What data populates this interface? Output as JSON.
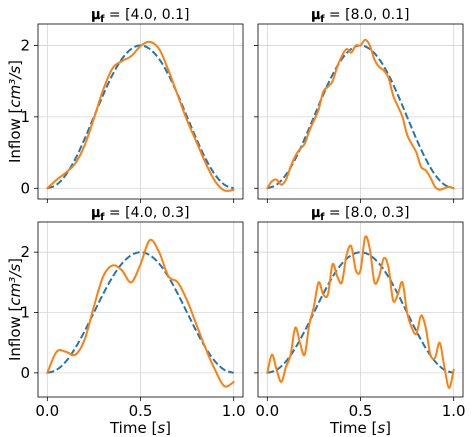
{
  "chart_data": [
    {
      "type": "line",
      "title": "𝛍_f = [4.0, 0.1]",
      "xlabel": "",
      "ylabel": "Inflow [cm³/s]",
      "xlim": [
        -0.05,
        1.05
      ],
      "ylim": [
        -0.15,
        2.3
      ],
      "xticks": [
        0.0,
        0.5,
        1.0
      ],
      "xticklabels": [
        "",
        "",
        ""
      ],
      "yticks": [
        0,
        1,
        2
      ],
      "yticklabels": [
        "0",
        "1",
        "2"
      ],
      "grid": true,
      "series": [
        {
          "style": "dashed",
          "color": "#1f77b4",
          "x": [
            0.0,
            0.05,
            0.1,
            0.15,
            0.2,
            0.25,
            0.3,
            0.35,
            0.4,
            0.45,
            0.5,
            0.55,
            0.6,
            0.65,
            0.7,
            0.75,
            0.8,
            0.85,
            0.9,
            0.95,
            1.0
          ],
          "y": [
            0.0,
            0.05,
            0.19,
            0.41,
            0.69,
            1.0,
            1.31,
            1.59,
            1.81,
            1.95,
            2.0,
            1.95,
            1.81,
            1.59,
            1.31,
            1.0,
            0.69,
            0.41,
            0.19,
            0.05,
            0.0
          ]
        },
        {
          "style": "solid",
          "color": "#ff7f0e",
          "x": [
            0.0,
            0.05,
            0.1,
            0.15,
            0.2,
            0.25,
            0.3,
            0.35,
            0.4,
            0.45,
            0.5,
            0.55,
            0.6,
            0.65,
            0.7,
            0.75,
            0.8,
            0.85,
            0.9,
            0.95,
            1.0
          ],
          "y": [
            0.0,
            0.12,
            0.22,
            0.35,
            0.6,
            0.98,
            1.38,
            1.68,
            1.78,
            1.85,
            1.99,
            2.05,
            1.95,
            1.65,
            1.3,
            0.95,
            0.65,
            0.35,
            0.1,
            -0.03,
            -0.02
          ]
        }
      ]
    },
    {
      "type": "line",
      "title": "𝛍_f = [8.0, 0.1]",
      "xlabel": "",
      "ylabel": "",
      "xlim": [
        -0.05,
        1.05
      ],
      "ylim": [
        -0.15,
        2.3
      ],
      "xticks": [
        0.0,
        0.5,
        1.0
      ],
      "xticklabels": [
        "",
        "",
        ""
      ],
      "yticks": [
        0,
        1,
        2
      ],
      "yticklabels": [
        "",
        "",
        ""
      ],
      "grid": true,
      "series": [
        {
          "style": "dashed",
          "color": "#1f77b4",
          "x": [
            0.0,
            0.05,
            0.1,
            0.15,
            0.2,
            0.25,
            0.3,
            0.35,
            0.4,
            0.45,
            0.5,
            0.55,
            0.6,
            0.65,
            0.7,
            0.75,
            0.8,
            0.85,
            0.9,
            0.95,
            1.0
          ],
          "y": [
            0.0,
            0.05,
            0.19,
            0.41,
            0.69,
            1.0,
            1.31,
            1.59,
            1.81,
            1.95,
            2.0,
            1.95,
            1.81,
            1.59,
            1.31,
            1.0,
            0.69,
            0.41,
            0.19,
            0.05,
            0.0
          ]
        },
        {
          "style": "solid",
          "color": "#ff7f0e",
          "x": [
            0.0,
            0.025,
            0.05,
            0.075,
            0.1,
            0.125,
            0.15,
            0.175,
            0.2,
            0.225,
            0.25,
            0.275,
            0.3,
            0.325,
            0.35,
            0.375,
            0.4,
            0.425,
            0.45,
            0.475,
            0.5,
            0.525,
            0.55,
            0.575,
            0.6,
            0.625,
            0.65,
            0.675,
            0.7,
            0.725,
            0.75,
            0.775,
            0.8,
            0.825,
            0.85,
            0.875,
            0.9,
            0.925,
            0.95,
            0.975,
            1.0
          ],
          "y": [
            0.0,
            0.1,
            0.12,
            0.05,
            0.12,
            0.3,
            0.45,
            0.55,
            0.62,
            0.8,
            0.95,
            1.1,
            1.35,
            1.42,
            1.5,
            1.7,
            1.85,
            1.95,
            1.9,
            2.0,
            2.0,
            2.08,
            2.0,
            1.8,
            1.7,
            1.65,
            1.55,
            1.3,
            1.15,
            1.0,
            0.75,
            0.62,
            0.5,
            0.3,
            0.25,
            0.15,
            0.02,
            -0.02,
            0.0,
            0.02,
            0.0
          ]
        }
      ]
    },
    {
      "type": "line",
      "title": "𝛍_f = [4.0, 0.3]",
      "xlabel": "Time [s]",
      "ylabel": "Inflow [cm³/s]",
      "xlim": [
        -0.05,
        1.05
      ],
      "ylim": [
        -0.4,
        2.5
      ],
      "xticks": [
        0.0,
        0.5,
        1.0
      ],
      "xticklabels": [
        "0.0",
        "0.5",
        "1.0"
      ],
      "yticks": [
        0,
        1,
        2
      ],
      "yticklabels": [
        "0",
        "1",
        "2"
      ],
      "grid": true,
      "series": [
        {
          "style": "dashed",
          "color": "#1f77b4",
          "x": [
            0.0,
            0.05,
            0.1,
            0.15,
            0.2,
            0.25,
            0.3,
            0.35,
            0.4,
            0.45,
            0.5,
            0.55,
            0.6,
            0.65,
            0.7,
            0.75,
            0.8,
            0.85,
            0.9,
            0.95,
            1.0
          ],
          "y": [
            0.0,
            0.05,
            0.19,
            0.41,
            0.69,
            1.0,
            1.31,
            1.59,
            1.81,
            1.95,
            2.0,
            1.95,
            1.81,
            1.59,
            1.31,
            1.0,
            0.69,
            0.41,
            0.19,
            0.05,
            0.0
          ]
        },
        {
          "style": "solid",
          "color": "#ff7f0e",
          "x": [
            0.0,
            0.05,
            0.1,
            0.15,
            0.2,
            0.25,
            0.3,
            0.35,
            0.4,
            0.45,
            0.5,
            0.55,
            0.6,
            0.65,
            0.7,
            0.75,
            0.8,
            0.85,
            0.9,
            0.95,
            1.0
          ],
          "y": [
            0.0,
            0.35,
            0.35,
            0.3,
            0.55,
            1.1,
            1.6,
            1.78,
            1.7,
            1.5,
            1.8,
            2.2,
            2.0,
            1.6,
            1.5,
            1.2,
            0.8,
            0.4,
            0.05,
            -0.22,
            -0.15
          ]
        }
      ]
    },
    {
      "type": "line",
      "title": "𝛍_f = [8.0, 0.3]",
      "xlabel": "Time [s]",
      "ylabel": "",
      "xlim": [
        -0.05,
        1.05
      ],
      "ylim": [
        -0.4,
        2.5
      ],
      "xticks": [
        0.0,
        0.5,
        1.0
      ],
      "xticklabels": [
        "0.0",
        "0.5",
        "1.0"
      ],
      "yticks": [
        0,
        1,
        2
      ],
      "yticklabels": [
        "",
        "",
        ""
      ],
      "grid": true,
      "series": [
        {
          "style": "dashed",
          "color": "#1f77b4",
          "x": [
            0.0,
            0.05,
            0.1,
            0.15,
            0.2,
            0.25,
            0.3,
            0.35,
            0.4,
            0.45,
            0.5,
            0.55,
            0.6,
            0.65,
            0.7,
            0.75,
            0.8,
            0.85,
            0.9,
            0.95,
            1.0
          ],
          "y": [
            0.0,
            0.05,
            0.19,
            0.41,
            0.69,
            1.0,
            1.31,
            1.59,
            1.81,
            1.95,
            2.0,
            1.95,
            1.81,
            1.59,
            1.31,
            1.0,
            0.69,
            0.41,
            0.19,
            0.05,
            0.0
          ]
        },
        {
          "style": "solid",
          "color": "#ff7f0e",
          "x": [
            0.0,
            0.025,
            0.05,
            0.075,
            0.1,
            0.125,
            0.15,
            0.175,
            0.2,
            0.225,
            0.25,
            0.275,
            0.3,
            0.325,
            0.35,
            0.375,
            0.4,
            0.425,
            0.45,
            0.475,
            0.5,
            0.525,
            0.55,
            0.575,
            0.6,
            0.625,
            0.65,
            0.675,
            0.7,
            0.725,
            0.75,
            0.775,
            0.8,
            0.825,
            0.85,
            0.875,
            0.9,
            0.925,
            0.95,
            0.975,
            1.0
          ],
          "y": [
            0.0,
            0.3,
            0.05,
            -0.15,
            0.1,
            0.3,
            0.75,
            0.5,
            0.3,
            0.8,
            1.1,
            1.5,
            1.3,
            1.3,
            1.8,
            1.6,
            1.5,
            1.95,
            2.1,
            1.7,
            1.7,
            2.25,
            2.05,
            1.5,
            1.6,
            1.9,
            1.75,
            1.2,
            1.3,
            1.5,
            1.0,
            0.75,
            0.65,
            0.95,
            0.75,
            0.3,
            0.25,
            0.5,
            0.1,
            -0.25,
            0.05
          ]
        }
      ]
    }
  ]
}
